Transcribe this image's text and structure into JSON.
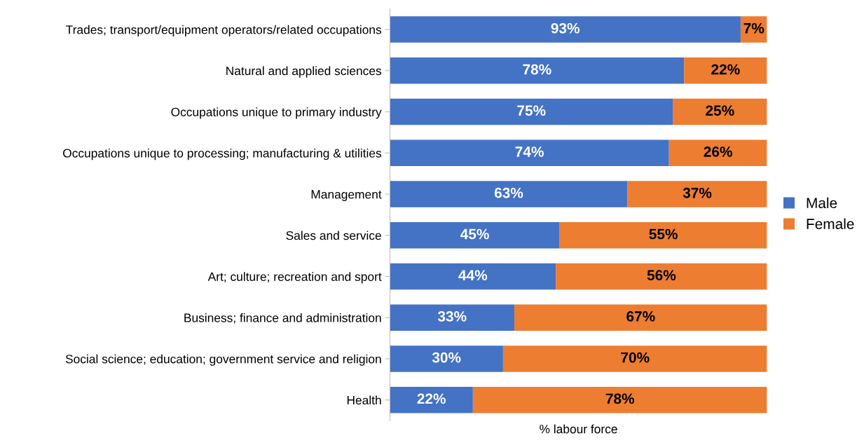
{
  "chart_data": {
    "type": "bar",
    "orientation": "horizontal",
    "stacked": true,
    "xlabel": "% labour force",
    "categories": [
      "Trades; transport/equipment operators/related occupations",
      "Natural and applied sciences",
      "Occupations unique to primary industry",
      "Occupations unique to processing; manufacturing & utilities",
      "Management",
      "Sales and service",
      "Art; culture; recreation and sport",
      "Business; finance and administration",
      "Social science; education; government service and religion",
      "Health"
    ],
    "series": [
      {
        "name": "Male",
        "color": "#4472c4",
        "values": [
          93,
          78,
          75,
          74,
          63,
          45,
          44,
          33,
          30,
          22
        ],
        "value_labels": [
          "93%",
          "78%",
          "75%",
          "74%",
          "63%",
          "45%",
          "44%",
          "33%",
          "30%",
          "22%"
        ]
      },
      {
        "name": "Female",
        "color": "#ed7d31",
        "values": [
          7,
          22,
          25,
          26,
          37,
          55,
          56,
          67,
          70,
          78
        ],
        "value_labels": [
          "7%",
          "22%",
          "25%",
          "26%",
          "37%",
          "55%",
          "56%",
          "67%",
          "70%",
          "78%"
        ]
      }
    ],
    "legend": "right",
    "tick_labels": "y",
    "grid": false
  }
}
